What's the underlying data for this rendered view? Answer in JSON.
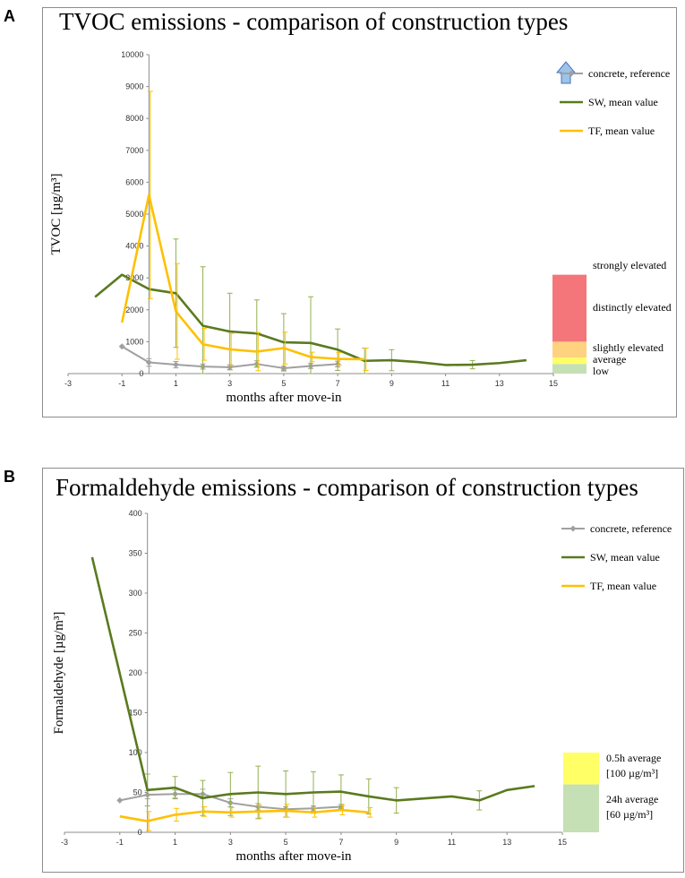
{
  "panels": [
    {
      "letter": "A",
      "chart_data": {
        "type": "line",
        "title": "TVOC emissions - comparison of construction types",
        "xlabel": "months after move-in",
        "ylabel": "TVOC [µg/m³]",
        "xlim": [
          -3,
          15
        ],
        "ylim": [
          0,
          10000
        ],
        "xticks": [
          -3,
          -1,
          1,
          3,
          5,
          7,
          9,
          11,
          13,
          15
        ],
        "yticks": [
          0,
          1000,
          2000,
          3000,
          4000,
          5000,
          6000,
          7000,
          8000,
          9000,
          10000
        ],
        "legend_position": "top-right",
        "series": [
          {
            "name": "concrete, reference",
            "color": "#a0a0a0",
            "markers": true,
            "x": [
              -1,
              0,
              1,
              2,
              3,
              4,
              5,
              6,
              7
            ],
            "y": [
              850,
              350,
              280,
              220,
              200,
              300,
              170,
              240,
              300
            ],
            "err": [
              0,
              120,
              100,
              80,
              80,
              100,
              60,
              80,
              90
            ]
          },
          {
            "name": "SW, mean value",
            "color": "#5a7a1e",
            "markers": false,
            "x": [
              -2,
              -1,
              0,
              1,
              2,
              3,
              4,
              5,
              6,
              7,
              8,
              9,
              10,
              11,
              12,
              13,
              14
            ],
            "y": [
              2400,
              3100,
              2650,
              2520,
              1500,
              1320,
              1260,
              980,
              960,
              750,
              400,
              420,
              360,
              270,
              280,
              330,
              420
            ],
            "err": [
              0,
              0,
              0,
              1700,
              1850,
              1200,
              1050,
              900,
              1450,
              650,
              400,
              330,
              0,
              0,
              130,
              0,
              0
            ]
          },
          {
            "name": "TF, mean value",
            "color": "#ffc000",
            "markers": false,
            "x": [
              -1,
              0,
              1,
              2,
              3,
              4,
              5,
              6,
              7,
              8
            ],
            "y": [
              1600,
              5600,
              1950,
              920,
              760,
              690,
              800,
              520,
              460,
              450
            ],
            "err": [
              0,
              3250,
              1500,
              500,
              500,
              600,
              500,
              150,
              200,
              350
            ]
          }
        ],
        "categories": [
          {
            "label": "strongly elevated",
            "color": "#9dc3e6",
            "range": [
              10000,
              10000
            ]
          },
          {
            "label": "distinctly elevated",
            "color": "#f4767a",
            "range": [
              1000,
              3100
            ]
          },
          {
            "label": "slightly elevated",
            "color": "#ffd280",
            "range": [
              500,
              1000
            ]
          },
          {
            "label": "average",
            "color": "#ffff66",
            "range": [
              300,
              500
            ]
          },
          {
            "label": "low",
            "color": "#c5e0b4",
            "range": [
              0,
              300
            ]
          }
        ]
      }
    },
    {
      "letter": "B",
      "chart_data": {
        "type": "line",
        "title": "Formaldehyde emissions - comparison of construction types",
        "xlabel": "months after move-in",
        "ylabel": "Formaldehyde [µg/m³]",
        "xlim": [
          -3,
          15
        ],
        "ylim": [
          0,
          400
        ],
        "xticks": [
          -3,
          -1,
          1,
          3,
          5,
          7,
          9,
          11,
          13,
          15
        ],
        "yticks": [
          0,
          50,
          100,
          150,
          200,
          250,
          300,
          350,
          400
        ],
        "legend_position": "top-right",
        "series": [
          {
            "name": "concrete, reference",
            "color": "#a0a0a0",
            "markers": true,
            "x": [
              -1,
              0,
              1,
              2,
              3,
              4,
              5,
              6,
              7
            ],
            "y": [
              40,
              47,
              48,
              48,
              37,
              32,
              29,
              30,
              32
            ],
            "err": [
              0,
              5,
              5,
              6,
              5,
              4,
              3,
              3,
              3
            ]
          },
          {
            "name": "SW, mean value",
            "color": "#5a7a1e",
            "markers": false,
            "x": [
              -2,
              0,
              1,
              2,
              3,
              4,
              5,
              6,
              7,
              8,
              9,
              11,
              12,
              13,
              14
            ],
            "y": [
              345,
              53,
              56,
              43,
              48,
              50,
              48,
              50,
              51,
              45,
              40,
              45,
              40,
              53,
              58
            ],
            "err": [
              0,
              20,
              14,
              22,
              27,
              33,
              29,
              26,
              21,
              22,
              16,
              0,
              12,
              0,
              0
            ]
          },
          {
            "name": "TF, mean value",
            "color": "#ffc000",
            "markers": false,
            "x": [
              -1,
              0,
              1,
              2,
              3,
              4,
              5,
              6,
              7,
              8
            ],
            "y": [
              20,
              14,
              22,
              26,
              25,
              26,
              27,
              25,
              28,
              25
            ],
            "err": [
              0,
              12,
              8,
              6,
              6,
              8,
              8,
              6,
              6,
              6
            ]
          }
        ],
        "categories": [
          {
            "label": "0.5h average",
            "label2": "[100 µg/m³]",
            "color": "#ffff66",
            "range": [
              60,
              100
            ]
          },
          {
            "label": "24h average",
            "label2": "[60 µg/m³]",
            "color": "#c5e0b4",
            "range": [
              0,
              60
            ]
          }
        ]
      }
    }
  ]
}
